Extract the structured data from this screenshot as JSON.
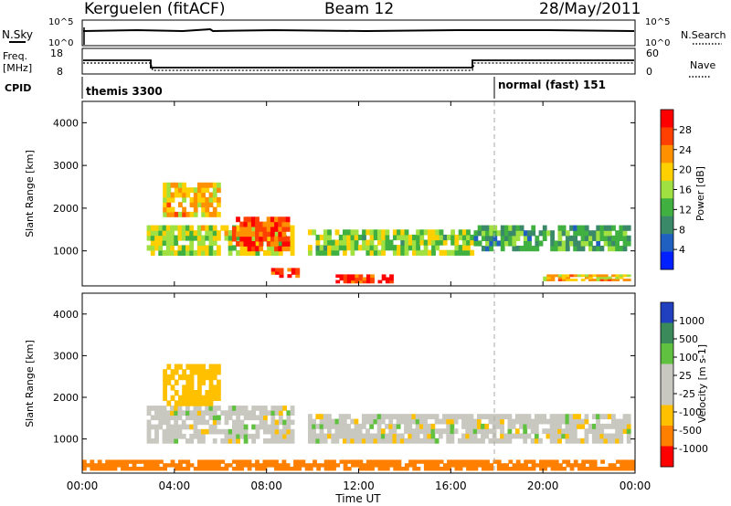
{
  "header": {
    "station": "Kerguelen (fitACF)",
    "beam": "Beam 12",
    "date": "28/May/2011"
  },
  "sky_panel": {
    "label": "N.Sky",
    "right_label": "N.Search",
    "ticks_left": [
      "10^5",
      "10^0"
    ],
    "ticks_right": [
      "10^5",
      "10^0"
    ]
  },
  "freq_panel": {
    "label_line1": "Freq.",
    "label_line2": "[MHz]",
    "right_label": "Nave",
    "ticks_left": [
      "18",
      "8"
    ],
    "ticks_right": [
      "60",
      "0"
    ]
  },
  "cpid_panel": {
    "label": "CPID",
    "segments": [
      {
        "name": "themis 3300",
        "start": "00:00",
        "end": "18:00"
      },
      {
        "name": "normal (fast) 151",
        "start": "18:00",
        "end": "24:00"
      }
    ]
  },
  "x_axis": {
    "title": "Time UT",
    "ticks": [
      "00:00",
      "04:00",
      "08:00",
      "12:00",
      "16:00",
      "20:00",
      "00:00"
    ]
  },
  "power_panel": {
    "ylabel": "Slant Range [km]",
    "yticks": [
      "4000",
      "3000",
      "2000",
      "1000"
    ],
    "colorbar_label": "Power [dB]",
    "colorbar_ticks": [
      "28",
      "24",
      "20",
      "16",
      "12",
      "8",
      "4"
    ],
    "colors": [
      "#ff0000",
      "#ff4000",
      "#ff9000",
      "#ffd000",
      "#a0e040",
      "#40b040",
      "#3a8a6a",
      "#2060c0",
      "#0020ff"
    ]
  },
  "velocity_panel": {
    "ylabel": "Slant Range [km]",
    "yticks": [
      "4000",
      "3000",
      "2000",
      "1000"
    ],
    "colorbar_label": "Velocity [m s-1]",
    "colorbar_ticks": [
      "1000",
      "500",
      "100",
      "25",
      "-25",
      "-100",
      "-500",
      "-1000"
    ],
    "colors": [
      "#2040c0",
      "#3a8a5a",
      "#60c040",
      "#c8c8c0",
      "#c8c8c0",
      "#ffc000",
      "#ff8000",
      "#ff0000"
    ]
  },
  "chart_data": {
    "type": "heatmap",
    "x_unit": "hours UT",
    "xlim": [
      0,
      24
    ],
    "ylim": [
      180,
      4500
    ],
    "power_regions": [
      {
        "t0": 2.8,
        "t1": 9.2,
        "r0": 900,
        "r1": 1600,
        "value": 16
      },
      {
        "t0": 6.5,
        "t1": 9.0,
        "r0": 1000,
        "r1": 1800,
        "value": 26
      },
      {
        "t0": 3.5,
        "t1": 6.0,
        "r0": 1800,
        "r1": 2600,
        "value": 20
      },
      {
        "t0": 8.2,
        "t1": 9.6,
        "r0": 380,
        "r1": 600,
        "value": 28
      },
      {
        "t0": 11.0,
        "t1": 13.5,
        "r0": 250,
        "r1": 450,
        "value": 28
      },
      {
        "t0": 9.8,
        "t1": 17.0,
        "r0": 900,
        "r1": 1500,
        "value": 14
      },
      {
        "t0": 17.0,
        "t1": 23.8,
        "r0": 1000,
        "r1": 1600,
        "value": 10
      },
      {
        "t0": 20.0,
        "t1": 23.8,
        "r0": 300,
        "r1": 450,
        "value": 20
      }
    ],
    "velocity_regions": [
      {
        "t0": 2.8,
        "t1": 9.2,
        "r0": 900,
        "r1": 1800,
        "value": 0
      },
      {
        "t0": 9.8,
        "t1": 23.8,
        "r0": 900,
        "r1": 1600,
        "value": 0
      },
      {
        "t0": 3.5,
        "t1": 6.0,
        "r0": 1800,
        "r1": 2800,
        "value": -100
      },
      {
        "t0": 0.0,
        "t1": 24.0,
        "r0": 250,
        "r1": 500,
        "value": -200
      }
    ]
  }
}
